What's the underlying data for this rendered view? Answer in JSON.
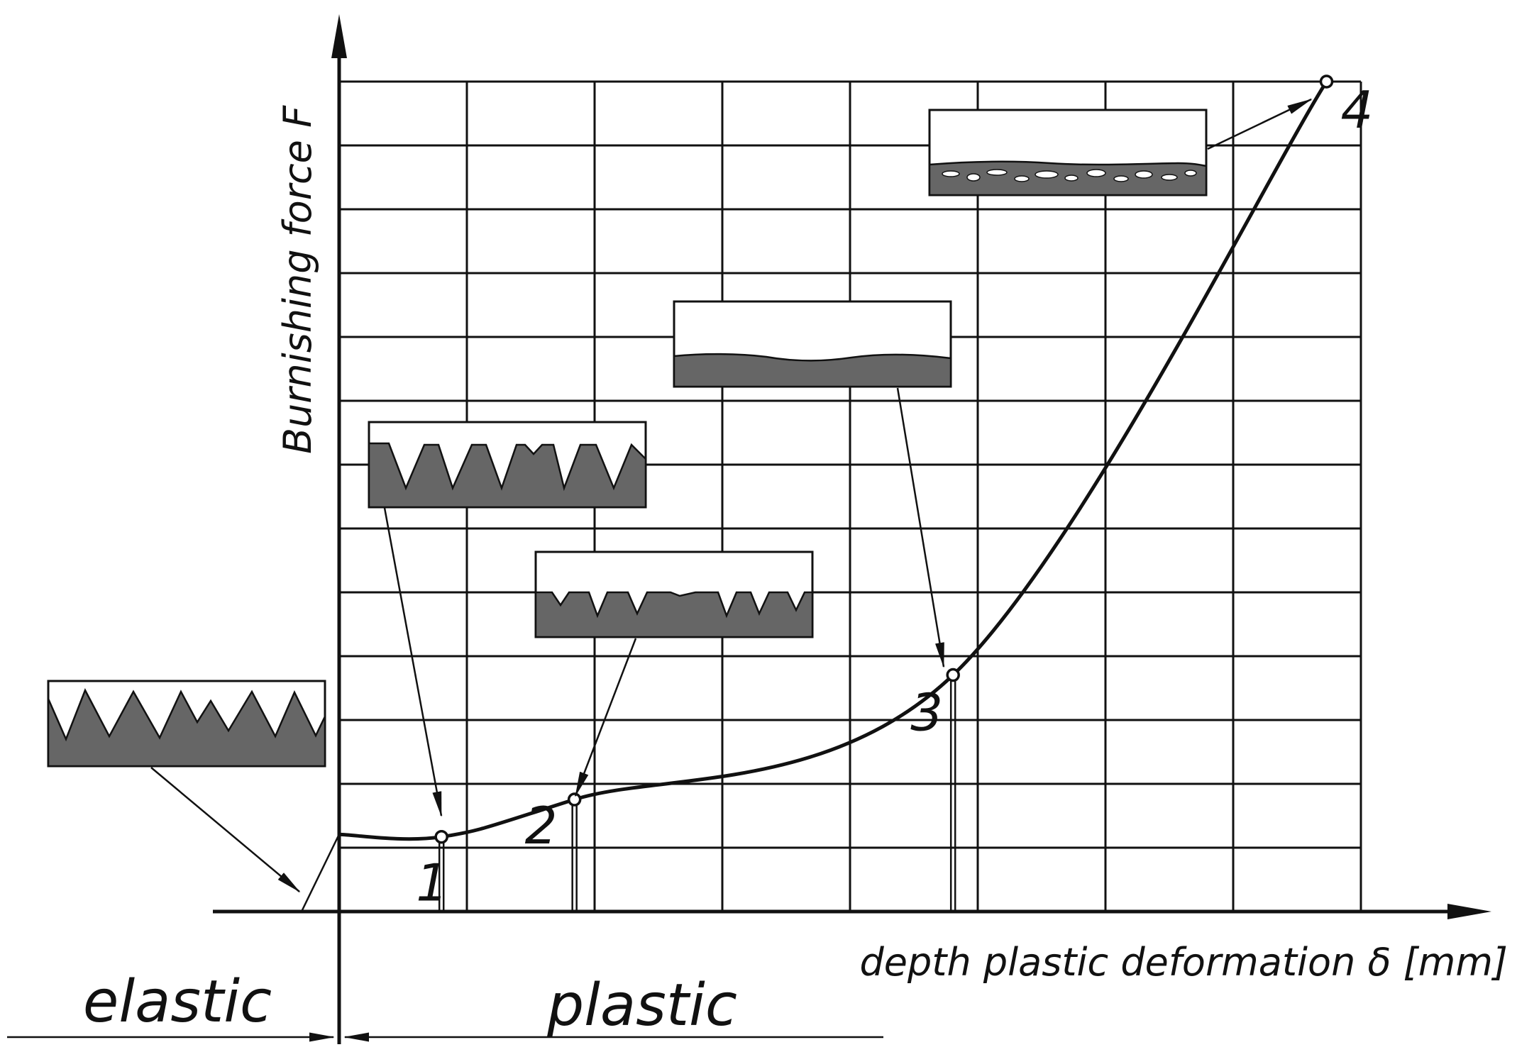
{
  "axes": {
    "y_label": "Burnishing force F",
    "x_label": "depth plastic deformation δ [mm]"
  },
  "points": [
    {
      "id": "1",
      "label": "1",
      "x": 0.1,
      "y": 0.09
    },
    {
      "id": "2",
      "label": "2",
      "x": 0.23,
      "y": 0.135
    },
    {
      "id": "3",
      "label": "3",
      "x": 0.6,
      "y": 0.285
    },
    {
      "id": "4",
      "label": "4",
      "x": 0.965,
      "y": 1.0
    }
  ],
  "regions": {
    "elastic": "elastic",
    "plastic": "plastic"
  },
  "insets": [
    {
      "id": "initial-roughness",
      "surface": "sharp peaks (initial rough surface)"
    },
    {
      "id": "stage-1",
      "surface": "slightly flattened peaks"
    },
    {
      "id": "stage-2",
      "surface": "strongly flattened peaks"
    },
    {
      "id": "stage-3",
      "surface": "smooth wavy surface"
    },
    {
      "id": "stage-4",
      "surface": "flaked / damaged surface layer"
    }
  ],
  "colors": {
    "line": "#111111",
    "material": "#666666",
    "background": "#ffffff"
  }
}
